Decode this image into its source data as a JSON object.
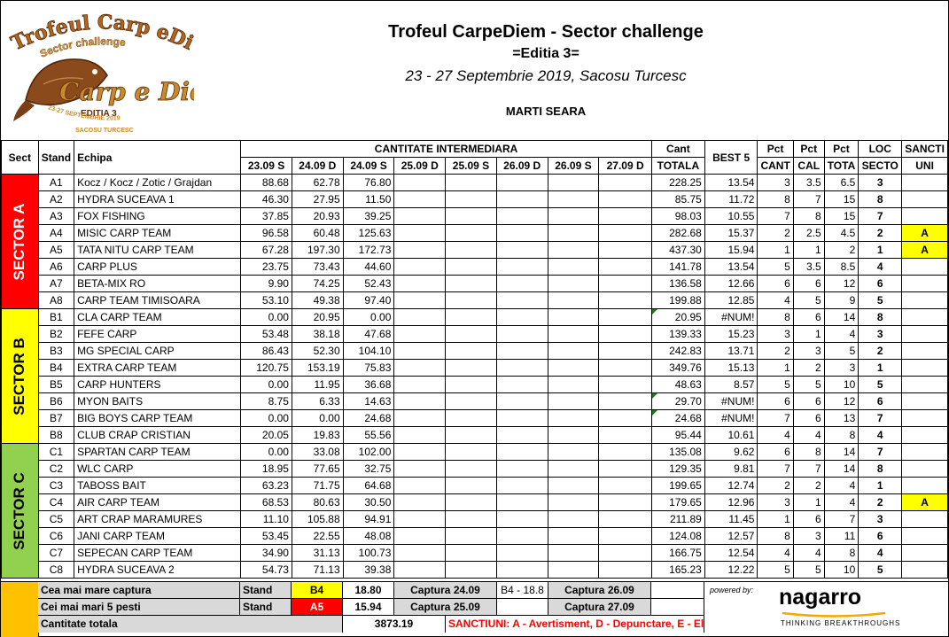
{
  "header": {
    "title": "Trofeul CarpeDiem - Sector challenge",
    "edition": "=Editia 3=",
    "dates": "23 - 27 Septembrie 2019, Sacosu Turcesc",
    "session": "MARTI SEARA",
    "logo": {
      "top": "Trofeul Carp eDiem",
      "sub": "Sector challenge",
      "script": "Carp e Diem",
      "edition": "EDITIA 3",
      "dates": "23-27 SEPTEMBRIE 2019",
      "place": "SACOSU TURCESC"
    }
  },
  "columns": {
    "sect": "Sect",
    "stand": "Stand",
    "team": "Echipa",
    "intermediate": "CANTITATE INTERMEDIARA",
    "days": [
      "23.09 S",
      "24.09 D",
      "24.09 S",
      "25.09 D",
      "25.09 S",
      "26.09 D",
      "26.09 S",
      "27.09 D"
    ],
    "total_a": "Cant",
    "total_b": "TOTALA",
    "best": "BEST 5",
    "pct_cant_a": "Pct",
    "pct_cant_b": "CANT",
    "pct_cal_a": "Pct",
    "pct_cal_b": "CAL",
    "pct_tot_a": "Pct",
    "pct_tot_b": "TOTA",
    "loc_a": "LOC",
    "loc_b": "SECTO",
    "sanc_a": "SANCTI",
    "sanc_b": "UNI"
  },
  "sectors": [
    {
      "label": "SECTOR A",
      "rows": [
        {
          "stand": "A1",
          "team": "Kocz / Kocz / Zotic / Grajdan",
          "v": [
            "88.68",
            "62.78",
            "76.80"
          ],
          "total": "228.25",
          "best": "13.54",
          "pc": "3",
          "pcal": "3.5",
          "pt": "6.5",
          "loc": "3",
          "s": ""
        },
        {
          "stand": "A2",
          "team": "HYDRA SUCEAVA 1",
          "v": [
            "46.30",
            "27.95",
            "11.50"
          ],
          "total": "85.75",
          "best": "11.72",
          "pc": "8",
          "pcal": "7",
          "pt": "15",
          "loc": "8",
          "s": ""
        },
        {
          "stand": "A3",
          "team": "FOX FISHING",
          "v": [
            "37.85",
            "20.93",
            "39.25"
          ],
          "total": "98.03",
          "best": "10.55",
          "pc": "7",
          "pcal": "8",
          "pt": "15",
          "loc": "7",
          "s": ""
        },
        {
          "stand": "A4",
          "team": "MISIC CARP TEAM",
          "v": [
            "96.58",
            "60.48",
            "125.63"
          ],
          "total": "282.68",
          "best": "15.37",
          "pc": "2",
          "pcal": "2.5",
          "pt": "4.5",
          "loc": "2",
          "s": "A"
        },
        {
          "stand": "A5",
          "team": "TATA NITU CARP TEAM",
          "v": [
            "67.28",
            "197.30",
            "172.73"
          ],
          "total": "437.30",
          "best": "15.94",
          "pc": "1",
          "pcal": "1",
          "pt": "2",
          "loc": "1",
          "s": "A"
        },
        {
          "stand": "A6",
          "team": "CARP PLUS",
          "v": [
            "23.75",
            "73.43",
            "44.60"
          ],
          "total": "141.78",
          "best": "13.54",
          "pc": "5",
          "pcal": "3.5",
          "pt": "8.5",
          "loc": "4",
          "s": ""
        },
        {
          "stand": "A7",
          "team": "BETA-MIX RO",
          "v": [
            "9.90",
            "74.25",
            "52.43"
          ],
          "total": "136.58",
          "best": "12.66",
          "pc": "6",
          "pcal": "6",
          "pt": "12",
          "loc": "6",
          "s": ""
        },
        {
          "stand": "A8",
          "team": "CARP TEAM TIMISOARA",
          "v": [
            "53.10",
            "49.38",
            "97.40"
          ],
          "total": "199.88",
          "best": "12.85",
          "pc": "4",
          "pcal": "5",
          "pt": "9",
          "loc": "5",
          "s": ""
        }
      ]
    },
    {
      "label": "SECTOR B",
      "rows": [
        {
          "stand": "B1",
          "team": "CLA CARP TEAM",
          "v": [
            "0.00",
            "20.95",
            "0.00"
          ],
          "total": "20.95",
          "best": "#NUM!",
          "pc": "8",
          "pcal": "6",
          "pt": "14",
          "loc": "8",
          "s": ""
        },
        {
          "stand": "B2",
          "team": "FEFE CARP",
          "v": [
            "53.48",
            "38.18",
            "47.68"
          ],
          "total": "139.33",
          "best": "15.23",
          "pc": "3",
          "pcal": "1",
          "pt": "4",
          "loc": "3",
          "s": ""
        },
        {
          "stand": "B3",
          "team": "MG SPECIAL CARP",
          "v": [
            "86.43",
            "52.30",
            "104.10"
          ],
          "total": "242.83",
          "best": "13.71",
          "pc": "2",
          "pcal": "3",
          "pt": "5",
          "loc": "2",
          "s": ""
        },
        {
          "stand": "B4",
          "team": "EXTRA CARP TEAM",
          "v": [
            "120.75",
            "153.19",
            "75.83"
          ],
          "total": "349.76",
          "best": "15.13",
          "pc": "1",
          "pcal": "2",
          "pt": "3",
          "loc": "1",
          "s": ""
        },
        {
          "stand": "B5",
          "team": "CARP HUNTERS",
          "v": [
            "0.00",
            "11.95",
            "36.68"
          ],
          "total": "48.63",
          "best": "8.57",
          "pc": "5",
          "pcal": "5",
          "pt": "10",
          "loc": "5",
          "s": ""
        },
        {
          "stand": "B6",
          "team": "MYON BAITS",
          "v": [
            "8.75",
            "6.33",
            "14.63"
          ],
          "total": "29.70",
          "best": "#NUM!",
          "pc": "6",
          "pcal": "6",
          "pt": "12",
          "loc": "6",
          "s": ""
        },
        {
          "stand": "B7",
          "team": "BIG BOYS CARP TEAM",
          "v": [
            "0.00",
            "0.00",
            "24.68"
          ],
          "total": "24.68",
          "best": "#NUM!",
          "pc": "7",
          "pcal": "6",
          "pt": "13",
          "loc": "7",
          "s": ""
        },
        {
          "stand": "B8",
          "team": "CLUB CRAP CRISTIAN",
          "v": [
            "20.05",
            "19.83",
            "55.56"
          ],
          "total": "95.44",
          "best": "10.61",
          "pc": "4",
          "pcal": "4",
          "pt": "8",
          "loc": "4",
          "s": ""
        }
      ]
    },
    {
      "label": "SECTOR C",
      "rows": [
        {
          "stand": "C1",
          "team": "SPARTAN CARP TEAM",
          "v": [
            "0.00",
            "33.08",
            "102.00"
          ],
          "total": "135.08",
          "best": "9.62",
          "pc": "6",
          "pcal": "8",
          "pt": "14",
          "loc": "7",
          "s": ""
        },
        {
          "stand": "C2",
          "team": "WLC CARP",
          "v": [
            "18.95",
            "77.65",
            "32.75"
          ],
          "total": "129.35",
          "best": "9.81",
          "pc": "7",
          "pcal": "7",
          "pt": "14",
          "loc": "8",
          "s": ""
        },
        {
          "stand": "C3",
          "team": "TABOSS BAIT",
          "v": [
            "63.23",
            "71.75",
            "64.68"
          ],
          "total": "199.65",
          "best": "12.74",
          "pc": "2",
          "pcal": "2",
          "pt": "4",
          "loc": "1",
          "s": ""
        },
        {
          "stand": "C4",
          "team": "AIR CARP TEAM",
          "v": [
            "68.53",
            "80.63",
            "30.50"
          ],
          "total": "179.65",
          "best": "12.96",
          "pc": "3",
          "pcal": "1",
          "pt": "4",
          "loc": "2",
          "s": "A"
        },
        {
          "stand": "C5",
          "team": "ART CRAP MARAMURES",
          "v": [
            "11.10",
            "105.88",
            "94.91"
          ],
          "total": "211.89",
          "best": "11.45",
          "pc": "1",
          "pcal": "6",
          "pt": "7",
          "loc": "3",
          "s": ""
        },
        {
          "stand": "C6",
          "team": "JANI CARP TEAM",
          "v": [
            "53.45",
            "22.55",
            "48.08"
          ],
          "total": "124.08",
          "best": "12.57",
          "pc": "8",
          "pcal": "3",
          "pt": "11",
          "loc": "6",
          "s": ""
        },
        {
          "stand": "C7",
          "team": "SEPECAN CARP TEAM",
          "v": [
            "34.90",
            "31.13",
            "100.73"
          ],
          "total": "166.75",
          "best": "12.54",
          "pc": "4",
          "pcal": "4",
          "pt": "8",
          "loc": "4",
          "s": ""
        },
        {
          "stand": "C8",
          "team": "HYDRA SUCEAVA 2",
          "v": [
            "54.73",
            "71.13",
            "39.38"
          ],
          "total": "165.23",
          "best": "12.22",
          "pc": "5",
          "pcal": "5",
          "pt": "10",
          "loc": "5",
          "s": ""
        }
      ]
    }
  ],
  "footer": {
    "biggest_label": "Cea mai mare captura",
    "biggest_stand_label": "Stand",
    "biggest_stand": "B4",
    "biggest_value": "18.80",
    "cap2409": "Captura 24.09",
    "cap2409_val": "B4 - 18.8",
    "cap2609": "Captura 26.09",
    "best5_label": "Cei mai mari 5 pesti",
    "best5_stand_label": "Stand",
    "best5_stand": "A5",
    "best5_value": "15.94",
    "cap2509": "Captura 25.09",
    "cap2709": "Captura 27.09",
    "total_label": "Cantitate totala",
    "total_value": "3873.19",
    "sanctions": "SANCTIUNI: A - Avertisment, D - Depunctare, E - El",
    "powered": "powered by:",
    "sponsor": "nagarro",
    "sponsor_tag": "THINKING BREAKTHROUGHS"
  },
  "colors": {
    "sector_a": "#ff0000",
    "sector_b": "#ffff00",
    "sector_c": "#92d050",
    "footer_left": "#ffc000",
    "highlight": "#ffff00"
  }
}
